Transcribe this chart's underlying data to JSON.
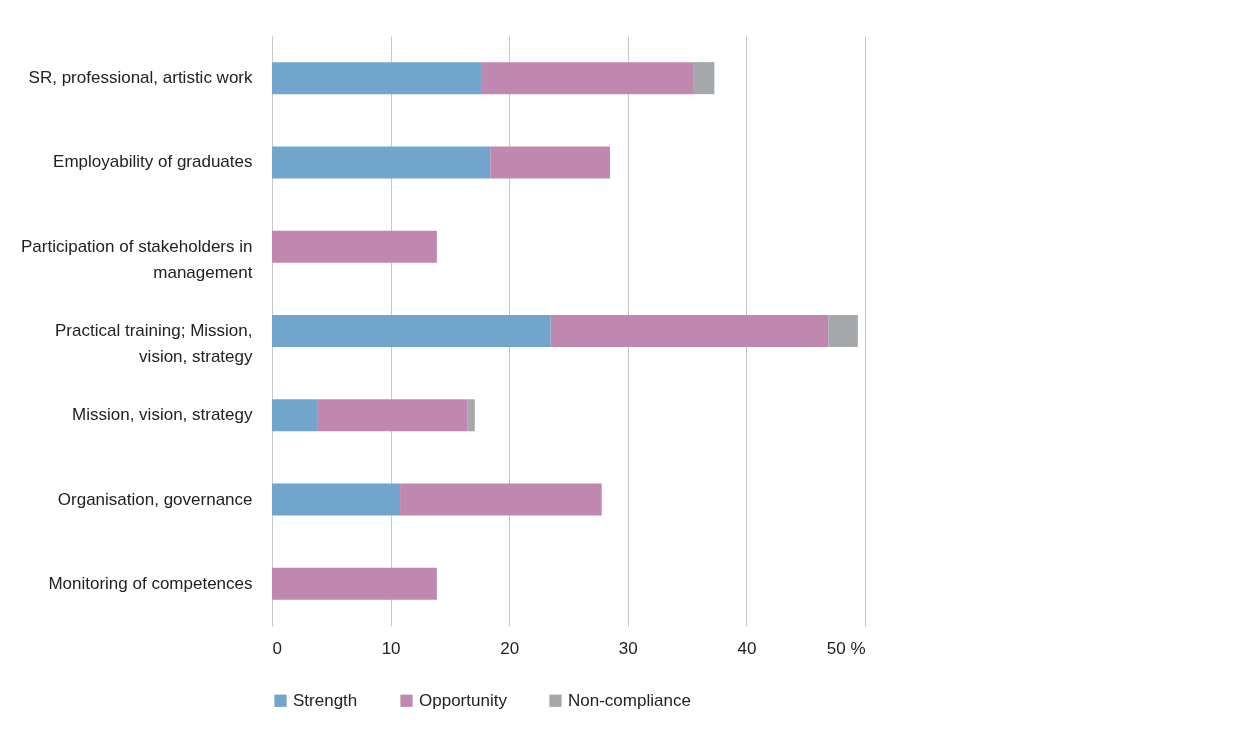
{
  "chart_data": {
    "type": "bar",
    "orientation": "horizontal",
    "stacked": true,
    "categories": [
      "SR, professional, artistic work",
      "Employability of graduates",
      "Participation of stakeholders in management",
      "Practical training; Mission, vision, strategy",
      "Mission, vision, strategy",
      "Organisation, governance",
      "Monitoring of competences"
    ],
    "series": [
      {
        "name": "Strength",
        "color": "#72a5cc",
        "values": [
          17.7,
          18.4,
          null,
          23.5,
          3.8,
          10.8,
          null
        ]
      },
      {
        "name": "Opportunity",
        "color": "#c088ae",
        "values": [
          17.8,
          10.1,
          13.9,
          23.4,
          12.7,
          17.0,
          13.9
        ]
      },
      {
        "name": "Non-compliance",
        "color": "#a5a8ab",
        "values": [
          1.8,
          null,
          null,
          2.5,
          0.6,
          null,
          null
        ]
      }
    ],
    "xlim": [
      0,
      50
    ],
    "xticks": [
      0,
      10,
      20,
      30,
      40,
      {
        "value": 50,
        "label": "50 %"
      }
    ],
    "grid": "x",
    "legend": "bottom"
  }
}
